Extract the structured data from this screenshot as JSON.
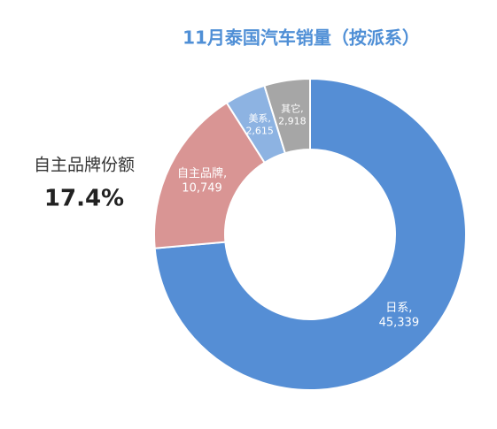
{
  "chart_data": {
    "type": "donut",
    "title": "11月泰国汽车销量（按派系）",
    "categories": [
      "日系,",
      "自主品牌,",
      "美系,",
      "其它,"
    ],
    "values": [
      45339,
      10749,
      2615,
      2918
    ],
    "value_labels": [
      "45,339",
      "10,749",
      "2,615",
      "2,918"
    ],
    "colors": [
      "#558ed5",
      "#d99594",
      "#8db3e2",
      "#a6a6a6"
    ],
    "annotation": {
      "label": "自主品牌份额",
      "value": "17.4%"
    }
  }
}
